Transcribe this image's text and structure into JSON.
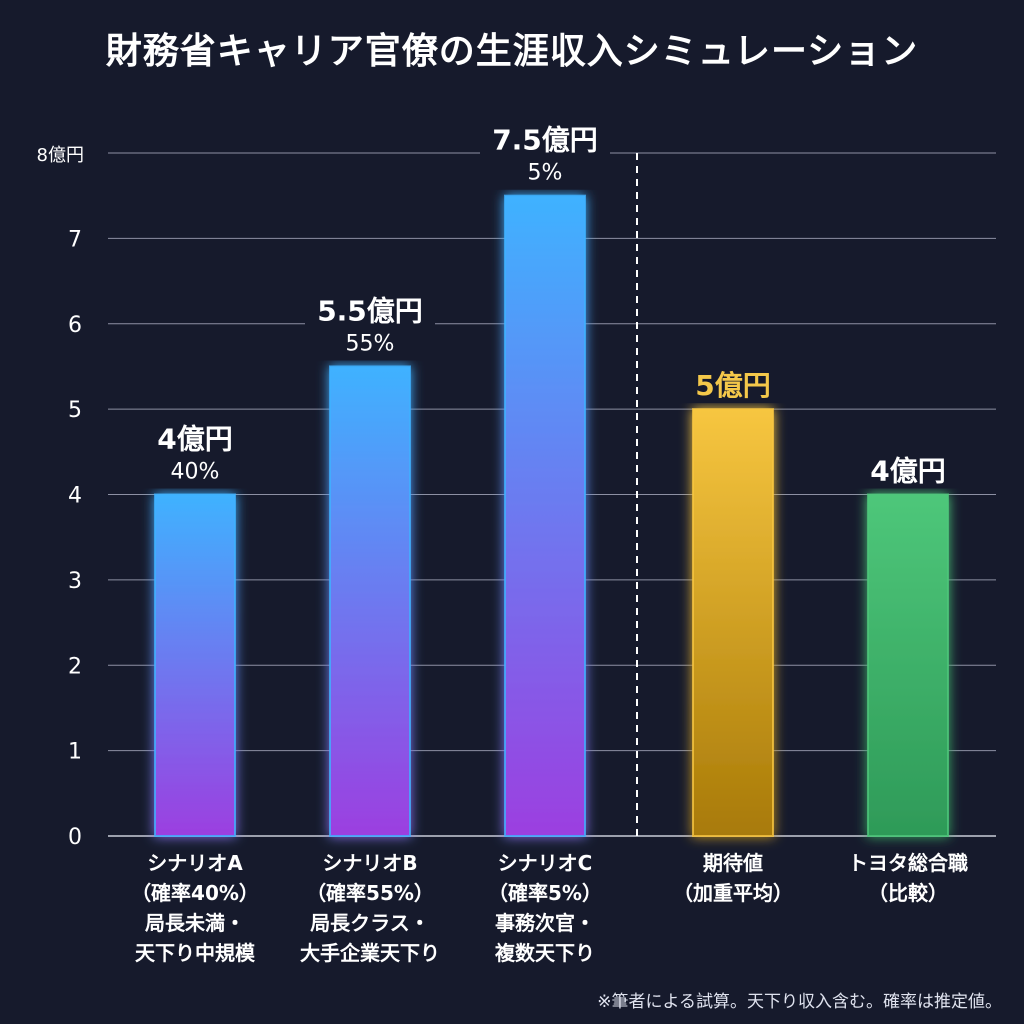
{
  "title": "財務省キャリア官僚の生涯収入シミュレーション",
  "footnote": "※筆者による試算。天下り収入含む。確率は推定値。",
  "chart_data": {
    "type": "bar",
    "title": "財務省キャリア官僚の生涯収入シミュレーション",
    "ylim": [
      0,
      8
    ],
    "y_ticks": [
      "0",
      "1",
      "2",
      "3",
      "4",
      "5",
      "6",
      "7",
      "8億円"
    ],
    "grid": true,
    "divider_after_index": 2,
    "bars": [
      {
        "value": 4,
        "value_label": "4億円",
        "sub_label": "40%",
        "category_lines": [
          "シナリオA",
          "（確率40%）",
          "局長未満・",
          "天下り中規模"
        ],
        "color_top": "#3fb2ff",
        "color_bottom": "#9c3fe0",
        "label_color": "#ffffff"
      },
      {
        "value": 5.5,
        "value_label": "5.5億円",
        "sub_label": "55%",
        "category_lines": [
          "シナリオB",
          "（確率55%）",
          "局長クラス・",
          "大手企業天下り"
        ],
        "color_top": "#3fb2ff",
        "color_bottom": "#9c3fe0",
        "label_color": "#ffffff"
      },
      {
        "value": 7.5,
        "value_label": "7.5億円",
        "sub_label": "5%",
        "category_lines": [
          "シナリオC",
          "（確率5%）",
          "事務次官・",
          "複数天下り"
        ],
        "color_top": "#3fb2ff",
        "color_bottom": "#9c3fe0",
        "label_color": "#ffffff"
      },
      {
        "value": 5,
        "value_label": "5億円",
        "sub_label": "",
        "category_lines": [
          "期待値",
          "（加重平均）"
        ],
        "color_top": "#f7c640",
        "color_bottom": "#a87a08",
        "label_color": "#f4c84a"
      },
      {
        "value": 4,
        "value_label": "4億円",
        "sub_label": "",
        "category_lines": [
          "トヨタ総合職",
          "（比較）"
        ],
        "color_top": "#4ec77a",
        "color_bottom": "#2e9a58",
        "label_color": "#ffffff"
      }
    ]
  }
}
